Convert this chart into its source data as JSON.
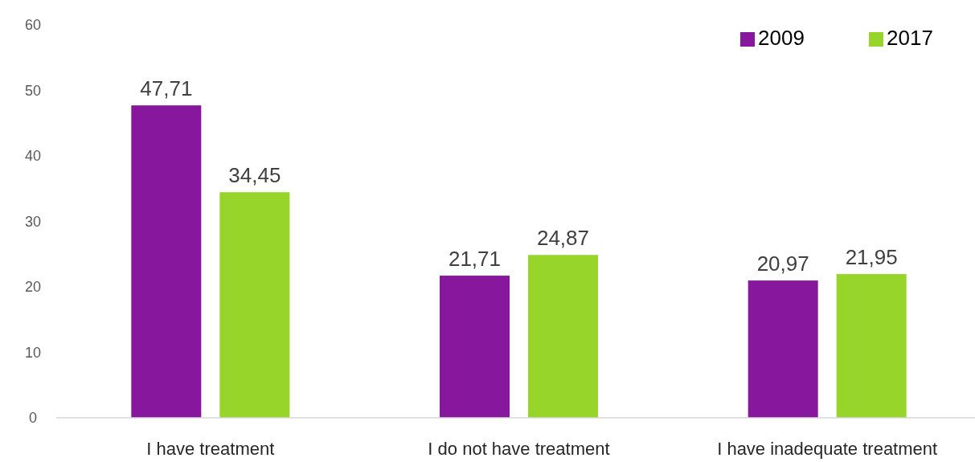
{
  "chart_data": {
    "type": "bar",
    "categories": [
      "I have treatment",
      "I do not have treatment",
      "I have inadequate treatment"
    ],
    "series": [
      {
        "name": "2009",
        "color": "#87189d",
        "values": [
          47.71,
          21.71,
          20.97
        ],
        "value_labels": [
          "47,71",
          "21,71",
          "20,97"
        ]
      },
      {
        "name": "2017",
        "color": "#97d52a",
        "values": [
          34.45,
          24.87,
          21.95
        ],
        "value_labels": [
          "34,45",
          "24,87",
          "21,95"
        ]
      }
    ],
    "ylim": [
      0,
      60
    ],
    "yticks": [
      0,
      10,
      20,
      30,
      40,
      50,
      60
    ],
    "grid": false,
    "legend": "top right"
  }
}
